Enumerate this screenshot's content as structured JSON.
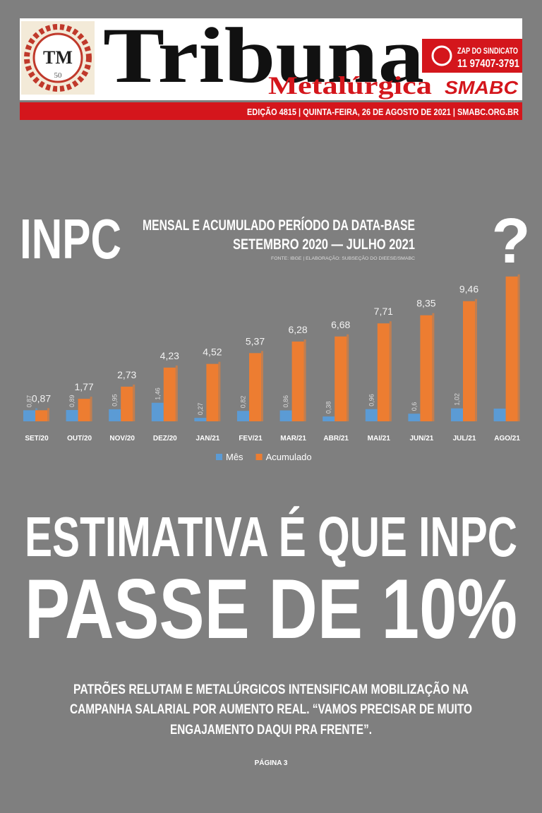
{
  "header": {
    "logo_text": "TM",
    "logo_number": "50",
    "title": "Tribuna",
    "subtitle": "Metalúrgica",
    "whatsapp_label": "ZAP DO SINDICATO",
    "whatsapp_number": "11 97407-3791",
    "brand": "SMABC",
    "edition": "EDIÇÃO 4815 | QUINTA-FEIRA, 26 DE AGOSTO DE 2021 | SMABC.ORG.BR"
  },
  "chart_data": {
    "type": "bar",
    "title": "INPC",
    "subtitle": [
      "MENSAL E ACUMULADO PERÍODO DA DATA-BASE",
      "SETEMBRO 2020 — JULHO 2021"
    ],
    "source": "FONTE: IBGE | ELABORAÇÃO: SUBSEÇÃO DO DIEESE/SMABC",
    "annotation": "?",
    "categories": [
      "SET/20",
      "OUT/20",
      "NOV/20",
      "DEZ/20",
      "JAN/21",
      "FEV/21",
      "MAR/21",
      "ABR/21",
      "MAI/21",
      "JUN/21",
      "JUL/21",
      "AGO/21"
    ],
    "series": [
      {
        "name": "Mês",
        "color": "#5b9bd5",
        "values": [
          0.87,
          0.89,
          0.95,
          1.46,
          0.27,
          0.82,
          0.86,
          0.38,
          0.96,
          0.6,
          1.02,
          1.0
        ],
        "value_labels": [
          "0,87",
          "0,89",
          "0,95",
          "1,46",
          "0,27",
          "0,82",
          "0,86",
          "0,38",
          "0,96",
          "0,6",
          "1,02",
          null
        ]
      },
      {
        "name": "Acumulado",
        "color": "#ed7d31",
        "values": [
          0.87,
          1.77,
          2.73,
          4.23,
          4.52,
          5.37,
          6.28,
          6.68,
          7.71,
          8.35,
          9.46,
          11.4
        ],
        "value_labels": [
          "0,87",
          "1,77",
          "2,73",
          "4,23",
          "4,52",
          "5,37",
          "6,28",
          "6,68",
          "7,71",
          "8,35",
          "9,46",
          null
        ]
      }
    ],
    "legend": "bottom"
  },
  "headline": [
    "ESTIMATIVA É QUE INPC",
    "PASSE DE 10%"
  ],
  "lede": [
    "PATRÕES RELUTAM E METALÚRGICOS INTENSIFICAM MOBILIZAÇÃO NA",
    "CAMPANHA SALARIAL POR AUMENTO REAL. “VAMOS PRECISAR DE MUITO",
    "ENGAJAMENTO DAQUI PRA FRENTE”."
  ],
  "page_ref": "PÁGINA 3"
}
